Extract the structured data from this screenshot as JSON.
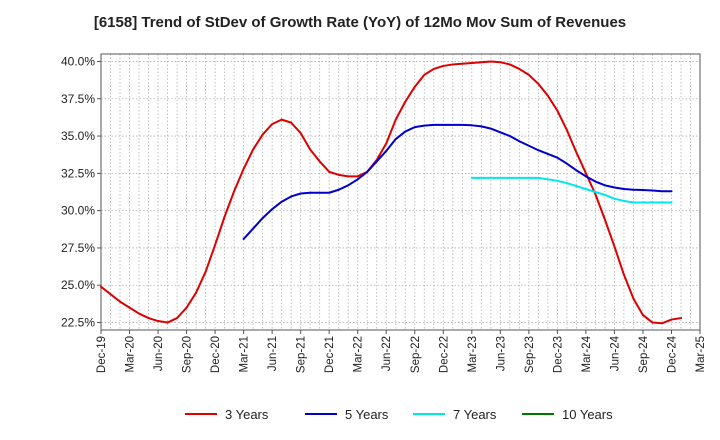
{
  "chart_data": {
    "type": "line",
    "title": "[6158]  Trend of StDev of Growth Rate (YoY) of 12Mo Mov Sum of Revenues",
    "xlabel": "",
    "ylabel": "",
    "ylim": [
      22.0,
      40.5
    ],
    "yticks": [
      22.5,
      25.0,
      27.5,
      30.0,
      32.5,
      35.0,
      37.5,
      40.0
    ],
    "ytick_labels": [
      "22.5%",
      "25.0%",
      "27.5%",
      "30.0%",
      "32.5%",
      "35.0%",
      "37.5%",
      "40.0%"
    ],
    "xticks": [
      "Dec-19",
      "Mar-20",
      "Jun-20",
      "Sep-20",
      "Dec-20",
      "Mar-21",
      "Jun-21",
      "Sep-21",
      "Dec-21",
      "Mar-22",
      "Jun-22",
      "Sep-22",
      "Dec-22",
      "Mar-23",
      "Jun-23",
      "Sep-23",
      "Dec-23",
      "Mar-24",
      "Jun-24",
      "Sep-24",
      "Dec-24",
      "Mar-25"
    ],
    "x_start": "Dec-19",
    "grid": true,
    "legend_position": "bottom",
    "series": [
      {
        "name": "3 Years",
        "color": "#dd0000",
        "start_index": 0,
        "values": [
          24.9,
          24.4,
          23.9,
          23.5,
          23.1,
          22.8,
          22.6,
          22.5,
          22.8,
          23.5,
          24.5,
          25.9,
          27.7,
          29.6,
          31.3,
          32.8,
          34.1,
          35.1,
          35.8,
          36.1,
          35.9,
          35.2,
          34.1,
          33.3,
          32.6,
          32.4,
          32.3,
          32.3,
          32.6,
          33.4,
          34.5,
          36.1,
          37.3,
          38.3,
          39.1,
          39.5,
          39.7,
          39.8,
          39.85,
          39.9,
          39.95,
          40.0,
          39.95,
          39.8,
          39.5,
          39.1,
          38.5,
          37.7,
          36.7,
          35.4,
          33.9,
          32.5,
          31.1,
          29.4,
          27.6,
          25.7,
          24.1,
          23.0,
          22.5,
          22.45,
          22.7,
          22.8
        ]
      },
      {
        "name": "5 Years",
        "color": "#0000cc",
        "start_index": 15,
        "values": [
          28.1,
          28.8,
          29.5,
          30.1,
          30.6,
          30.95,
          31.15,
          31.2,
          31.2,
          31.2,
          31.4,
          31.7,
          32.1,
          32.6,
          33.3,
          34.0,
          34.8,
          35.3,
          35.6,
          35.7,
          35.75,
          35.75,
          35.75,
          35.75,
          35.72,
          35.65,
          35.5,
          35.25,
          35.0,
          34.65,
          34.35,
          34.05,
          33.8,
          33.55,
          33.15,
          32.7,
          32.3,
          31.95,
          31.7,
          31.55,
          31.45,
          31.4,
          31.38,
          31.35,
          31.3,
          31.3
        ]
      },
      {
        "name": "7 Years",
        "color": "#00e5ee",
        "start_index": 39,
        "values": [
          32.2,
          32.2,
          32.2,
          32.2,
          32.2,
          32.2,
          32.2,
          32.2,
          32.1,
          32.0,
          31.85,
          31.65,
          31.45,
          31.25,
          31.05,
          30.8,
          30.65,
          30.55,
          30.55,
          30.55,
          30.55,
          30.55
        ]
      },
      {
        "name": "10 Years",
        "color": "#007700",
        "start_index": 0,
        "values": []
      }
    ]
  }
}
